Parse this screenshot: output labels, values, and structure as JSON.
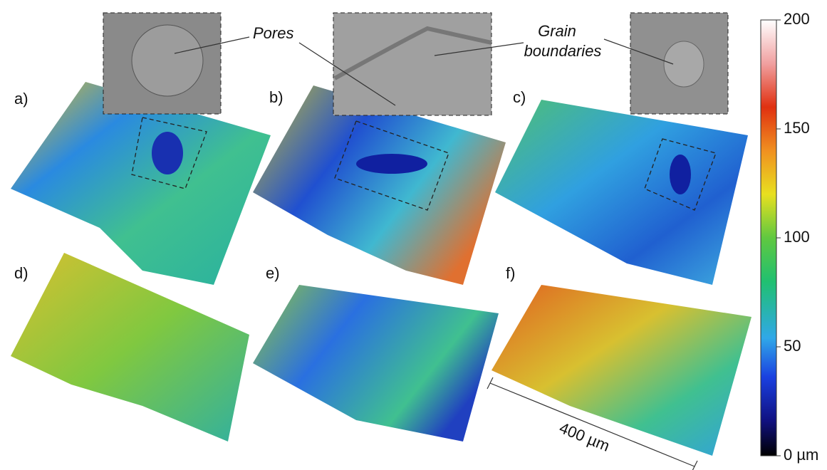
{
  "panels": [
    "a)",
    "b)",
    "c)",
    "d)",
    "e)",
    "f)"
  ],
  "annotations": {
    "pores": "Pores",
    "grain_boundaries": [
      "Grain",
      "boundaries"
    ],
    "scale_bar": "400 µm"
  },
  "colorbar": {
    "range": [
      0,
      200
    ],
    "ticks": [
      {
        "value": 0,
        "label": "0 µm"
      },
      50,
      100,
      150,
      200
    ]
  }
}
